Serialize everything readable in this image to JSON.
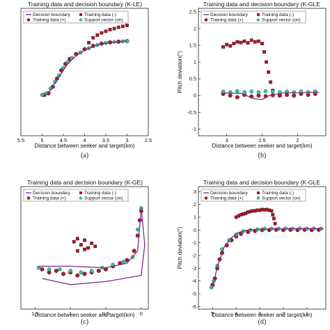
{
  "legend_labels": {
    "boundary": "Decision boundary",
    "neg": "Training data (-)",
    "pos": "Training data (+)",
    "sv": "Support vector (on)"
  },
  "colors": {
    "boundary": "#7b2a8c",
    "pos": "#a01c2c",
    "neg": "#a01c2c",
    "sv": "#3cbfa0"
  },
  "chart_data": [
    {
      "type": "scatter",
      "caption": "(a)",
      "title": "Training data and decision boundary (K-LE)",
      "xlabel": "Distance between seeker and target(km)",
      "ylabel": "",
      "x_reversed": true,
      "xlim": [
        5.5,
        2.5
      ],
      "ylim": [
        -1.3,
        2.6
      ],
      "xticks": [
        "5.5",
        "5",
        "4.5",
        "4",
        "3.5",
        "3",
        "2.5"
      ],
      "yticks": [],
      "legend_placement": "top",
      "positive": [
        [
          4.95,
          -0.05
        ],
        [
          4.85,
          0.0
        ],
        [
          4.75,
          0.2
        ],
        [
          4.65,
          0.45
        ],
        [
          4.55,
          0.7
        ],
        [
          4.45,
          0.9
        ],
        [
          4.35,
          1.05
        ],
        [
          4.2,
          1.2
        ],
        [
          4.0,
          1.35
        ],
        [
          3.8,
          1.45
        ],
        [
          3.6,
          1.52
        ],
        [
          3.4,
          1.56
        ],
        [
          3.2,
          1.58
        ],
        [
          3.0,
          1.6
        ]
      ],
      "negative": [
        [
          3.9,
          1.55
        ],
        [
          3.8,
          1.7
        ],
        [
          3.7,
          1.78
        ],
        [
          3.6,
          1.85
        ],
        [
          3.5,
          1.9
        ],
        [
          3.4,
          1.95
        ],
        [
          3.3,
          1.98
        ],
        [
          3.2,
          2.02
        ],
        [
          3.1,
          2.05
        ],
        [
          3.0,
          2.08
        ]
      ],
      "support_vectors": [
        [
          5.0,
          -0.05
        ],
        [
          4.9,
          0.0
        ],
        [
          4.8,
          0.15
        ],
        [
          4.7,
          0.35
        ],
        [
          4.6,
          0.55
        ],
        [
          4.5,
          0.78
        ],
        [
          4.4,
          0.95
        ],
        [
          4.3,
          1.08
        ],
        [
          4.1,
          1.25
        ],
        [
          3.9,
          1.38
        ],
        [
          3.7,
          1.48
        ],
        [
          3.5,
          1.54
        ],
        [
          3.3,
          1.57
        ],
        [
          3.1,
          1.59
        ],
        [
          3.0,
          1.6
        ]
      ],
      "boundary": [
        [
          4.95,
          -0.1
        ],
        [
          4.8,
          0.1
        ],
        [
          4.6,
          0.5
        ],
        [
          4.4,
          0.9
        ],
        [
          4.2,
          1.15
        ],
        [
          4.0,
          1.32
        ],
        [
          3.8,
          1.43
        ],
        [
          3.6,
          1.51
        ],
        [
          3.4,
          1.55
        ],
        [
          3.2,
          1.58
        ],
        [
          3.0,
          1.6
        ]
      ]
    },
    {
      "type": "scatter",
      "caption": "(b)",
      "title": "Training data and decision boundary (K-GLE",
      "xlabel": "Distance between seeker and target(km)",
      "ylabel": "Pitch deviation(°)",
      "x_reversed": true,
      "xlim": [
        3.4,
        1.6
      ],
      "ylim": [
        -1.2,
        2.6
      ],
      "xticks": [
        "3",
        "2.5",
        "2"
      ],
      "xtick_values": [
        3,
        2.5,
        2
      ],
      "yticks": [
        "-1",
        "-0.5",
        "0",
        "0.5",
        "1",
        "1.5",
        "2",
        "2.5"
      ],
      "ytick_values": [
        -1,
        -0.5,
        0,
        0.5,
        1,
        1.5,
        2,
        2.5
      ],
      "legend_placement": "top",
      "positive": [
        [
          3.05,
          0.05
        ],
        [
          2.95,
          0.0
        ],
        [
          2.85,
          -0.05
        ],
        [
          2.75,
          0.02
        ],
        [
          2.65,
          -0.03
        ],
        [
          2.55,
          0.0
        ],
        [
          2.45,
          -0.02
        ],
        [
          2.35,
          0.01
        ],
        [
          2.25,
          0.0
        ],
        [
          2.15,
          0.02
        ],
        [
          2.05,
          0.0
        ],
        [
          1.95,
          0.05
        ],
        [
          1.85,
          0.02
        ],
        [
          1.75,
          0.05
        ]
      ],
      "negative": [
        [
          3.05,
          1.45
        ],
        [
          3.0,
          1.52
        ],
        [
          2.95,
          1.48
        ],
        [
          2.9,
          1.55
        ],
        [
          2.85,
          1.6
        ],
        [
          2.8,
          1.58
        ],
        [
          2.75,
          1.62
        ],
        [
          2.7,
          1.57
        ],
        [
          2.65,
          1.65
        ],
        [
          2.6,
          1.6
        ],
        [
          2.55,
          1.62
        ],
        [
          2.5,
          1.55
        ],
        [
          2.47,
          1.3
        ],
        [
          2.44,
          1.0
        ],
        [
          2.41,
          0.7
        ],
        [
          2.38,
          0.4
        ],
        [
          2.35,
          0.15
        ]
      ],
      "support_vectors": [
        [
          3.05,
          0.12
        ],
        [
          2.95,
          0.1
        ],
        [
          2.85,
          0.13
        ],
        [
          2.75,
          0.1
        ],
        [
          2.65,
          0.12
        ],
        [
          2.55,
          0.1
        ],
        [
          2.45,
          0.13
        ],
        [
          2.35,
          0.12
        ],
        [
          2.25,
          0.1
        ],
        [
          2.15,
          0.12
        ],
        [
          2.05,
          0.1
        ],
        [
          1.95,
          0.12
        ],
        [
          1.85,
          0.1
        ],
        [
          1.75,
          0.12
        ]
      ],
      "boundary": [
        [
          3.05,
          0.08
        ],
        [
          2.8,
          0.06
        ],
        [
          2.6,
          -0.1
        ],
        [
          2.5,
          -0.12
        ],
        [
          2.4,
          0.0
        ],
        [
          2.2,
          0.08
        ],
        [
          2.0,
          0.08
        ],
        [
          1.7,
          0.1
        ]
      ]
    },
    {
      "type": "scatter",
      "caption": "(c)",
      "title": "Training data and decision boundary (K-GE)",
      "xlabel": "Distance between seeker and target(km)",
      "ylabel": "",
      "x_reversed": true,
      "xlim": [
        1.7,
        -0.1
      ],
      "ylim": [
        -1.6,
        2.4
      ],
      "xticks": [
        "1.5",
        "1",
        "0.5",
        "0"
      ],
      "xtick_values": [
        1.5,
        1,
        0.5,
        0
      ],
      "yticks": [],
      "legend_placement": "top",
      "positive": [
        [
          1.4,
          -0.3
        ],
        [
          1.3,
          -0.4
        ],
        [
          1.2,
          -0.35
        ],
        [
          1.1,
          -0.45
        ],
        [
          1.0,
          -0.4
        ],
        [
          0.9,
          -0.5
        ],
        [
          0.8,
          -0.45
        ],
        [
          0.7,
          -0.4
        ],
        [
          0.6,
          -0.35
        ],
        [
          0.5,
          -0.3
        ],
        [
          0.4,
          -0.2
        ],
        [
          0.3,
          -0.1
        ],
        [
          0.2,
          0.0
        ],
        [
          0.1,
          0.3
        ],
        [
          0.05,
          0.8
        ],
        [
          0.02,
          1.3
        ],
        [
          0.0,
          1.6
        ]
      ],
      "negative": [
        [
          0.95,
          0.6
        ],
        [
          0.9,
          0.7
        ],
        [
          0.85,
          0.5
        ],
        [
          0.8,
          0.65
        ],
        [
          0.75,
          0.4
        ],
        [
          0.7,
          0.55
        ],
        [
          0.65,
          0.45
        ],
        [
          0.9,
          0.3
        ],
        [
          0.8,
          0.35
        ]
      ],
      "support_vectors": [
        [
          1.45,
          -0.25
        ],
        [
          1.3,
          -0.3
        ],
        [
          1.15,
          -0.3
        ],
        [
          1.0,
          -0.35
        ],
        [
          0.85,
          -0.4
        ],
        [
          0.7,
          -0.35
        ],
        [
          0.55,
          -0.25
        ],
        [
          0.4,
          -0.15
        ],
        [
          0.25,
          -0.05
        ],
        [
          0.12,
          0.1
        ],
        [
          0.05,
          1.0
        ],
        [
          0.0,
          1.7
        ]
      ],
      "boundary": [
        [
          1.45,
          -0.2
        ],
        [
          1.0,
          -0.2
        ],
        [
          0.5,
          -0.25
        ],
        [
          0.2,
          -0.1
        ],
        [
          0.05,
          0.3
        ],
        [
          0.0,
          1.7
        ],
        [
          -0.05,
          0.5
        ],
        [
          0.0,
          -0.5
        ],
        [
          0.5,
          -0.7
        ],
        [
          1.0,
          -0.8
        ],
        [
          1.4,
          -0.6
        ]
      ]
    },
    {
      "type": "scatter",
      "caption": "(d)",
      "title": "Training data and decision boundary (K-GLE",
      "xlabel": "Distance between seeker and target(km)",
      "ylabel": "Pitch deviation(°)",
      "x_reversed": true,
      "xlim": [
        5.6,
        0.2
      ],
      "ylim": [
        -6.2,
        3.4
      ],
      "xticks": [
        "5",
        "4",
        "3",
        "2",
        "1"
      ],
      "xtick_values": [
        5,
        4,
        3,
        2,
        1
      ],
      "yticks": [
        "-6",
        "-5",
        "-4",
        "-3",
        "-2",
        "-1",
        "0",
        "1",
        "2",
        "3"
      ],
      "ytick_values": [
        -6,
        -5,
        -4,
        -3,
        -2,
        -1,
        0,
        1,
        2,
        3
      ],
      "legend_placement": "top",
      "positive": [
        [
          5.0,
          -4.3
        ],
        [
          4.9,
          -3.8
        ],
        [
          4.8,
          -3.0
        ],
        [
          4.7,
          -2.3
        ],
        [
          4.6,
          -1.8
        ],
        [
          4.4,
          -1.2
        ],
        [
          4.2,
          -0.8
        ],
        [
          4.0,
          -0.5
        ],
        [
          3.8,
          -0.3
        ],
        [
          3.5,
          -0.15
        ],
        [
          3.2,
          -0.08
        ],
        [
          2.9,
          0.0
        ],
        [
          2.6,
          0.0
        ],
        [
          2.3,
          0.02
        ],
        [
          2.0,
          0.0
        ],
        [
          1.7,
          0.02
        ],
        [
          1.4,
          0.0
        ],
        [
          1.1,
          0.02
        ],
        [
          0.8,
          0.0
        ],
        [
          0.5,
          0.02
        ]
      ],
      "negative": [
        [
          4.0,
          1.0
        ],
        [
          3.9,
          1.1
        ],
        [
          3.8,
          1.2
        ],
        [
          3.7,
          1.25
        ],
        [
          3.6,
          1.3
        ],
        [
          3.5,
          1.4
        ],
        [
          3.4,
          1.45
        ],
        [
          3.3,
          1.5
        ],
        [
          3.2,
          1.5
        ],
        [
          3.1,
          1.55
        ],
        [
          3.0,
          1.55
        ],
        [
          2.9,
          1.6
        ],
        [
          2.8,
          1.58
        ],
        [
          2.7,
          1.6
        ],
        [
          2.6,
          1.55
        ],
        [
          2.5,
          1.5
        ],
        [
          2.45,
          1.2
        ],
        [
          2.4,
          0.9
        ],
        [
          2.35,
          0.5
        ]
      ],
      "support_vectors": [
        [
          5.05,
          -4.5
        ],
        [
          4.95,
          -4.0
        ],
        [
          4.8,
          -2.8
        ],
        [
          4.6,
          -1.5
        ],
        [
          4.3,
          -0.8
        ],
        [
          4.0,
          -0.35
        ],
        [
          3.7,
          -0.1
        ],
        [
          3.4,
          0.0
        ],
        [
          3.1,
          0.05
        ],
        [
          2.8,
          0.1
        ],
        [
          2.5,
          0.1
        ],
        [
          2.2,
          0.1
        ],
        [
          1.9,
          0.12
        ],
        [
          1.6,
          0.1
        ],
        [
          1.3,
          0.12
        ],
        [
          1.0,
          0.1
        ],
        [
          0.7,
          0.12
        ],
        [
          0.4,
          0.1
        ]
      ],
      "boundary": [
        [
          5.0,
          -4.5
        ],
        [
          4.8,
          -2.9
        ],
        [
          4.5,
          -1.3
        ],
        [
          4.2,
          -0.6
        ],
        [
          3.9,
          -0.2
        ],
        [
          3.5,
          0.0
        ],
        [
          3.0,
          0.05
        ],
        [
          2.5,
          0.08
        ],
        [
          2.0,
          0.08
        ],
        [
          1.5,
          0.1
        ],
        [
          1.0,
          0.1
        ],
        [
          0.3,
          0.1
        ]
      ]
    }
  ]
}
